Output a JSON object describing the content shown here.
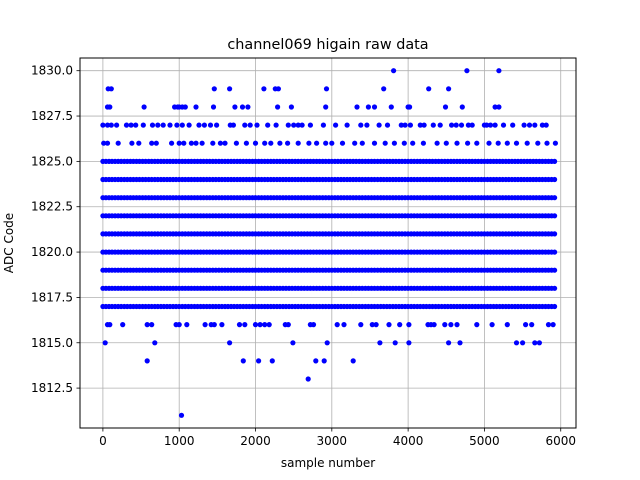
{
  "chart_data": {
    "type": "scatter",
    "title": "channel069 higain raw data",
    "xlabel": "sample number",
    "ylabel": "ADC Code",
    "xlim": [
      -300,
      6200
    ],
    "ylim": [
      1810.3,
      1830.7
    ],
    "x_ticks": [
      0,
      1000,
      2000,
      3000,
      4000,
      5000,
      6000
    ],
    "x_tick_labels": [
      "0",
      "1000",
      "2000",
      "3000",
      "4000",
      "5000",
      "6000"
    ],
    "y_ticks": [
      1812.5,
      1815.0,
      1817.5,
      1820.0,
      1822.5,
      1825.0,
      1827.5,
      1830.0
    ],
    "y_tick_labels": [
      "1812.5",
      "1815.0",
      "1817.5",
      "1820.0",
      "1822.5",
      "1825.0",
      "1827.5",
      "1830.0"
    ],
    "grid": true,
    "marker_color": "#0000ff",
    "series": [
      {
        "dense_levels": [
          {
            "y": 1817,
            "x_range": [
              0,
              5940
            ]
          },
          {
            "y": 1818,
            "x_range": [
              0,
              5940
            ]
          },
          {
            "y": 1819,
            "x_range": [
              0,
              5940
            ]
          },
          {
            "y": 1820,
            "x_range": [
              0,
              5940
            ]
          },
          {
            "y": 1821,
            "x_range": [
              0,
              5940
            ]
          },
          {
            "y": 1822,
            "x_range": [
              0,
              5940
            ]
          },
          {
            "y": 1823,
            "x_range": [
              0,
              5940
            ]
          },
          {
            "y": 1824,
            "x_range": [
              0,
              5940
            ]
          },
          {
            "y": 1825,
            "x_range": [
              0,
              5940
            ]
          }
        ],
        "points": [
          [
            1030,
            1811
          ],
          [
            2690,
            1813
          ],
          [
            30,
            1815
          ],
          [
            680,
            1815
          ],
          [
            1660,
            1815
          ],
          [
            2490,
            1815
          ],
          [
            2940,
            1815
          ],
          [
            3630,
            1815
          ],
          [
            3830,
            1815
          ],
          [
            4010,
            1815
          ],
          [
            4530,
            1815
          ],
          [
            4680,
            1815
          ],
          [
            5420,
            1815
          ],
          [
            5500,
            1815
          ],
          [
            5660,
            1815
          ],
          [
            5720,
            1815
          ],
          [
            580,
            1814
          ],
          [
            1840,
            1814
          ],
          [
            2040,
            1814
          ],
          [
            2220,
            1814
          ],
          [
            2790,
            1814
          ],
          [
            2900,
            1814
          ],
          [
            3280,
            1814
          ],
          [
            60,
            1816
          ],
          [
            90,
            1816
          ],
          [
            260,
            1816
          ],
          [
            580,
            1816
          ],
          [
            640,
            1816
          ],
          [
            960,
            1816
          ],
          [
            1000,
            1816
          ],
          [
            1100,
            1816
          ],
          [
            1340,
            1816
          ],
          [
            1420,
            1816
          ],
          [
            1460,
            1816
          ],
          [
            1560,
            1816
          ],
          [
            1790,
            1816
          ],
          [
            1860,
            1816
          ],
          [
            2000,
            1816
          ],
          [
            2060,
            1816
          ],
          [
            2120,
            1816
          ],
          [
            2180,
            1816
          ],
          [
            2390,
            1816
          ],
          [
            2430,
            1816
          ],
          [
            2720,
            1816
          ],
          [
            2760,
            1816
          ],
          [
            3070,
            1816
          ],
          [
            3160,
            1816
          ],
          [
            3380,
            1816
          ],
          [
            3530,
            1816
          ],
          [
            3580,
            1816
          ],
          [
            3750,
            1816
          ],
          [
            3890,
            1816
          ],
          [
            4010,
            1816
          ],
          [
            4260,
            1816
          ],
          [
            4300,
            1816
          ],
          [
            4340,
            1816
          ],
          [
            4480,
            1816
          ],
          [
            4560,
            1816
          ],
          [
            4640,
            1816
          ],
          [
            4900,
            1816
          ],
          [
            5100,
            1816
          ],
          [
            5300,
            1816
          ],
          [
            5540,
            1816
          ],
          [
            5620,
            1816
          ],
          [
            5840,
            1816
          ],
          [
            5900,
            1816
          ],
          [
            10,
            1826
          ],
          [
            60,
            1826
          ],
          [
            200,
            1826
          ],
          [
            380,
            1826
          ],
          [
            470,
            1826
          ],
          [
            640,
            1826
          ],
          [
            700,
            1826
          ],
          [
            900,
            1826
          ],
          [
            1000,
            1826
          ],
          [
            1060,
            1826
          ],
          [
            1160,
            1826
          ],
          [
            1220,
            1826
          ],
          [
            1300,
            1826
          ],
          [
            1440,
            1826
          ],
          [
            1540,
            1826
          ],
          [
            1600,
            1826
          ],
          [
            1750,
            1826
          ],
          [
            1880,
            1826
          ],
          [
            2000,
            1826
          ],
          [
            2120,
            1826
          ],
          [
            2200,
            1826
          ],
          [
            2320,
            1826
          ],
          [
            2420,
            1826
          ],
          [
            2560,
            1826
          ],
          [
            2700,
            1826
          ],
          [
            2800,
            1826
          ],
          [
            2920,
            1826
          ],
          [
            3000,
            1826
          ],
          [
            3140,
            1826
          ],
          [
            3300,
            1826
          ],
          [
            3400,
            1826
          ],
          [
            3560,
            1826
          ],
          [
            3700,
            1826
          ],
          [
            3820,
            1826
          ],
          [
            3950,
            1826
          ],
          [
            4060,
            1826
          ],
          [
            4200,
            1826
          ],
          [
            4380,
            1826
          ],
          [
            4500,
            1826
          ],
          [
            4640,
            1826
          ],
          [
            4780,
            1826
          ],
          [
            4900,
            1826
          ],
          [
            5060,
            1826
          ],
          [
            5180,
            1826
          ],
          [
            5300,
            1826
          ],
          [
            5420,
            1826
          ],
          [
            5560,
            1826
          ],
          [
            5700,
            1826
          ],
          [
            5820,
            1826
          ],
          [
            5930,
            1826
          ],
          [
            0,
            1827
          ],
          [
            60,
            1827
          ],
          [
            110,
            1827
          ],
          [
            180,
            1827
          ],
          [
            310,
            1827
          ],
          [
            370,
            1827
          ],
          [
            430,
            1827
          ],
          [
            530,
            1827
          ],
          [
            650,
            1827
          ],
          [
            720,
            1827
          ],
          [
            790,
            1827
          ],
          [
            880,
            1827
          ],
          [
            970,
            1827
          ],
          [
            1040,
            1827
          ],
          [
            1130,
            1827
          ],
          [
            1260,
            1827
          ],
          [
            1330,
            1827
          ],
          [
            1410,
            1827
          ],
          [
            1490,
            1827
          ],
          [
            1670,
            1827
          ],
          [
            1710,
            1827
          ],
          [
            1860,
            1827
          ],
          [
            1930,
            1827
          ],
          [
            2020,
            1827
          ],
          [
            2160,
            1827
          ],
          [
            2270,
            1827
          ],
          [
            2430,
            1827
          ],
          [
            2500,
            1827
          ],
          [
            2560,
            1827
          ],
          [
            2610,
            1827
          ],
          [
            2720,
            1827
          ],
          [
            2890,
            1827
          ],
          [
            3050,
            1827
          ],
          [
            3200,
            1827
          ],
          [
            3380,
            1827
          ],
          [
            3460,
            1827
          ],
          [
            3620,
            1827
          ],
          [
            3730,
            1827
          ],
          [
            3910,
            1827
          ],
          [
            3960,
            1827
          ],
          [
            4030,
            1827
          ],
          [
            4160,
            1827
          ],
          [
            4210,
            1827
          ],
          [
            4330,
            1827
          ],
          [
            4420,
            1827
          ],
          [
            4570,
            1827
          ],
          [
            4630,
            1827
          ],
          [
            4700,
            1827
          ],
          [
            4790,
            1827
          ],
          [
            4840,
            1827
          ],
          [
            5000,
            1827
          ],
          [
            5030,
            1827
          ],
          [
            5080,
            1827
          ],
          [
            5140,
            1827
          ],
          [
            5250,
            1827
          ],
          [
            5370,
            1827
          ],
          [
            5520,
            1827
          ],
          [
            5590,
            1827
          ],
          [
            5660,
            1827
          ],
          [
            5760,
            1827
          ],
          [
            5810,
            1827
          ],
          [
            60,
            1828
          ],
          [
            90,
            1828
          ],
          [
            540,
            1828
          ],
          [
            940,
            1828
          ],
          [
            980,
            1828
          ],
          [
            1000,
            1828
          ],
          [
            1040,
            1828
          ],
          [
            1080,
            1828
          ],
          [
            1220,
            1828
          ],
          [
            1450,
            1828
          ],
          [
            1730,
            1828
          ],
          [
            1830,
            1828
          ],
          [
            1900,
            1828
          ],
          [
            2290,
            1828
          ],
          [
            2470,
            1828
          ],
          [
            2920,
            1828
          ],
          [
            3330,
            1828
          ],
          [
            3480,
            1828
          ],
          [
            3560,
            1828
          ],
          [
            3780,
            1828
          ],
          [
            4000,
            1828
          ],
          [
            4020,
            1828
          ],
          [
            4490,
            1828
          ],
          [
            4710,
            1828
          ],
          [
            5140,
            1828
          ],
          [
            5190,
            1828
          ],
          [
            70,
            1829
          ],
          [
            110,
            1829
          ],
          [
            1460,
            1829
          ],
          [
            1660,
            1829
          ],
          [
            2110,
            1829
          ],
          [
            2260,
            1829
          ],
          [
            2300,
            1829
          ],
          [
            2930,
            1829
          ],
          [
            3680,
            1829
          ],
          [
            4270,
            1829
          ],
          [
            4530,
            1829
          ],
          [
            3810,
            1830
          ],
          [
            4770,
            1830
          ],
          [
            5190,
            1830
          ]
        ]
      }
    ]
  }
}
